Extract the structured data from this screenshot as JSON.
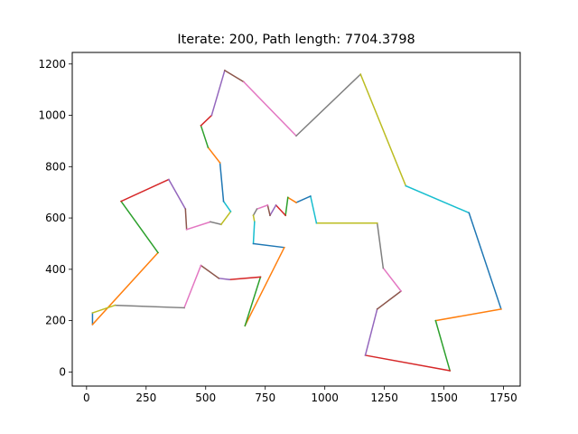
{
  "chart_data": {
    "type": "line",
    "title": "Iterate: 200,  Path length: 7704.3798",
    "xlabel": "",
    "ylabel": "",
    "xlim": [
      -60,
      1820
    ],
    "ylim": [
      -55,
      1245
    ],
    "x_ticks": [
      0,
      250,
      500,
      750,
      1000,
      1250,
      1500,
      1750
    ],
    "y_ticks": [
      0,
      200,
      400,
      600,
      800,
      1000,
      1200
    ],
    "grid": false,
    "legend": "none",
    "color_cycle": [
      "#1f77b4",
      "#ff7f0e",
      "#2ca02c",
      "#d62728",
      "#9467bd",
      "#8c564b",
      "#e377c2",
      "#7f7f7f",
      "#bcbd22",
      "#17becf"
    ],
    "path": [
      [
        25,
        230
      ],
      [
        25,
        185
      ],
      [
        300,
        465
      ],
      [
        145,
        665
      ],
      [
        345,
        750
      ],
      [
        415,
        635
      ],
      [
        420,
        555
      ],
      [
        520,
        585
      ],
      [
        565,
        575
      ],
      [
        605,
        625
      ],
      [
        575,
        665
      ],
      [
        560,
        815
      ],
      [
        510,
        875
      ],
      [
        480,
        960
      ],
      [
        525,
        1000
      ],
      [
        580,
        1175
      ],
      [
        660,
        1130
      ],
      [
        880,
        920
      ],
      [
        1150,
        1160
      ],
      [
        1340,
        725
      ],
      [
        1605,
        620
      ],
      [
        1740,
        245
      ],
      [
        1465,
        200
      ],
      [
        1525,
        5
      ],
      [
        1170,
        65
      ],
      [
        1220,
        245
      ],
      [
        1320,
        315
      ],
      [
        1245,
        405
      ],
      [
        1220,
        580
      ],
      [
        965,
        580
      ],
      [
        940,
        685
      ],
      [
        880,
        660
      ],
      [
        845,
        680
      ],
      [
        835,
        610
      ],
      [
        795,
        650
      ],
      [
        770,
        610
      ],
      [
        760,
        650
      ],
      [
        715,
        635
      ],
      [
        700,
        610
      ],
      [
        705,
        585
      ],
      [
        700,
        500
      ],
      [
        830,
        485
      ],
      [
        665,
        180
      ],
      [
        730,
        370
      ],
      [
        600,
        360
      ],
      [
        555,
        365
      ],
      [
        480,
        415
      ],
      [
        410,
        250
      ],
      [
        120,
        260
      ],
      [
        25,
        230
      ]
    ]
  }
}
